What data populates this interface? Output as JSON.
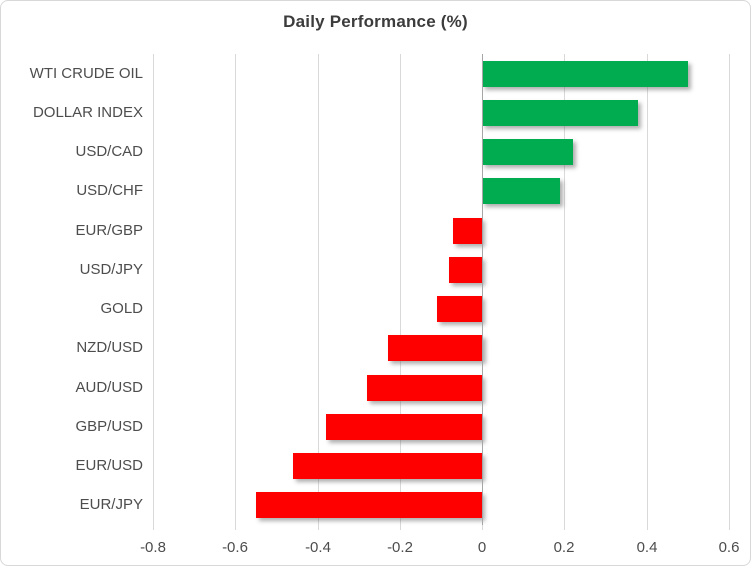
{
  "chart_data": {
    "type": "bar",
    "orientation": "horizontal",
    "title": "Daily Performance (%)",
    "categories": [
      "WTI CRUDE OIL",
      "DOLLAR INDEX",
      "USD/CAD",
      "USD/CHF",
      "EUR/GBP",
      "USD/JPY",
      "GOLD",
      "NZD/USD",
      "AUD/USD",
      "GBP/USD",
      "EUR/USD",
      "EUR/JPY"
    ],
    "values": [
      0.5,
      0.38,
      0.22,
      0.19,
      -0.07,
      -0.08,
      -0.11,
      -0.23,
      -0.28,
      -0.38,
      -0.46,
      -0.55
    ],
    "xlabel": "",
    "ylabel": "",
    "xlim": [
      -0.8,
      0.6
    ],
    "xtick_values": [
      -0.8,
      -0.6,
      -0.4,
      -0.2,
      0,
      0.2,
      0.4,
      0.6
    ],
    "xtick_labels": [
      "-0.8",
      "-0.6",
      "-0.4",
      "-0.2",
      "0",
      "0.2",
      "0.4",
      "0.6"
    ],
    "grid": true,
    "legend": false,
    "colors": {
      "positive_bar": "#00ac4f",
      "negative_bar": "#ff0000",
      "gridline": "#d9d9d9",
      "axis_line": "#a6a6a6",
      "label_text": "#4d4d4d",
      "title_text": "#3c3c3c"
    }
  }
}
